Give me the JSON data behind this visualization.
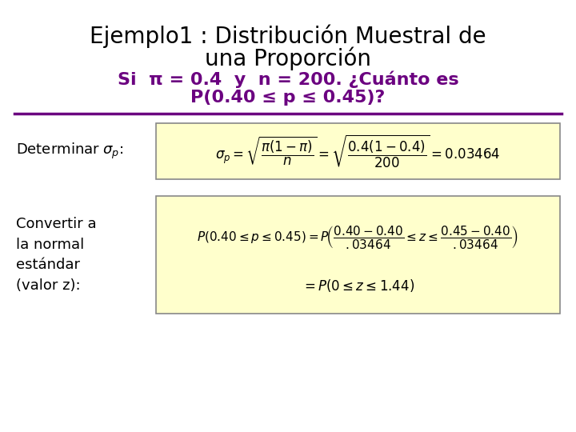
{
  "title_line1": "Ejemplo1 : Distribución Muestral de",
  "title_line2": "una Proporción",
  "title_color": "#000000",
  "title_fontsize": 20,
  "subtitle_line1": "Si  π = 0.4  y  n = 200. ¿Cuánto es",
  "subtitle_line2": "P(0.40 ≤ p ≤ 0.45)?",
  "subtitle_color": "#6B0080",
  "subtitle_fontsize": 16,
  "separator_color": "#6B0080",
  "box_bg_color": "#FFFFCC",
  "box_edge_color": "#888888",
  "left_label1": "Determinar $\\sigma_p$:",
  "left_label2_line1": "Convertir a",
  "left_label2_line2": "la normal",
  "left_label2_line3": "estándar",
  "left_label2_line4": "(valor z):",
  "formula1": "$\\sigma_p = \\sqrt{\\dfrac{\\pi(1-\\pi)}{n}} = \\sqrt{\\dfrac{0.4(1-0.4)}{200}} = 0.03464$",
  "formula2_line1": "$P(0.40 \\leq p \\leq 0.45) = P\\!\\left(\\dfrac{0.40 - 0.40}{.03464} \\leq z \\leq \\dfrac{0.45 - 0.40}{.03464}\\right)$",
  "formula2_line2": "$= P(0 \\leq z \\leq 1.44)$",
  "formula1_fontsize": 12,
  "formula2_fontsize": 11,
  "label_fontsize": 13,
  "bg_color": "#FFFFFF"
}
